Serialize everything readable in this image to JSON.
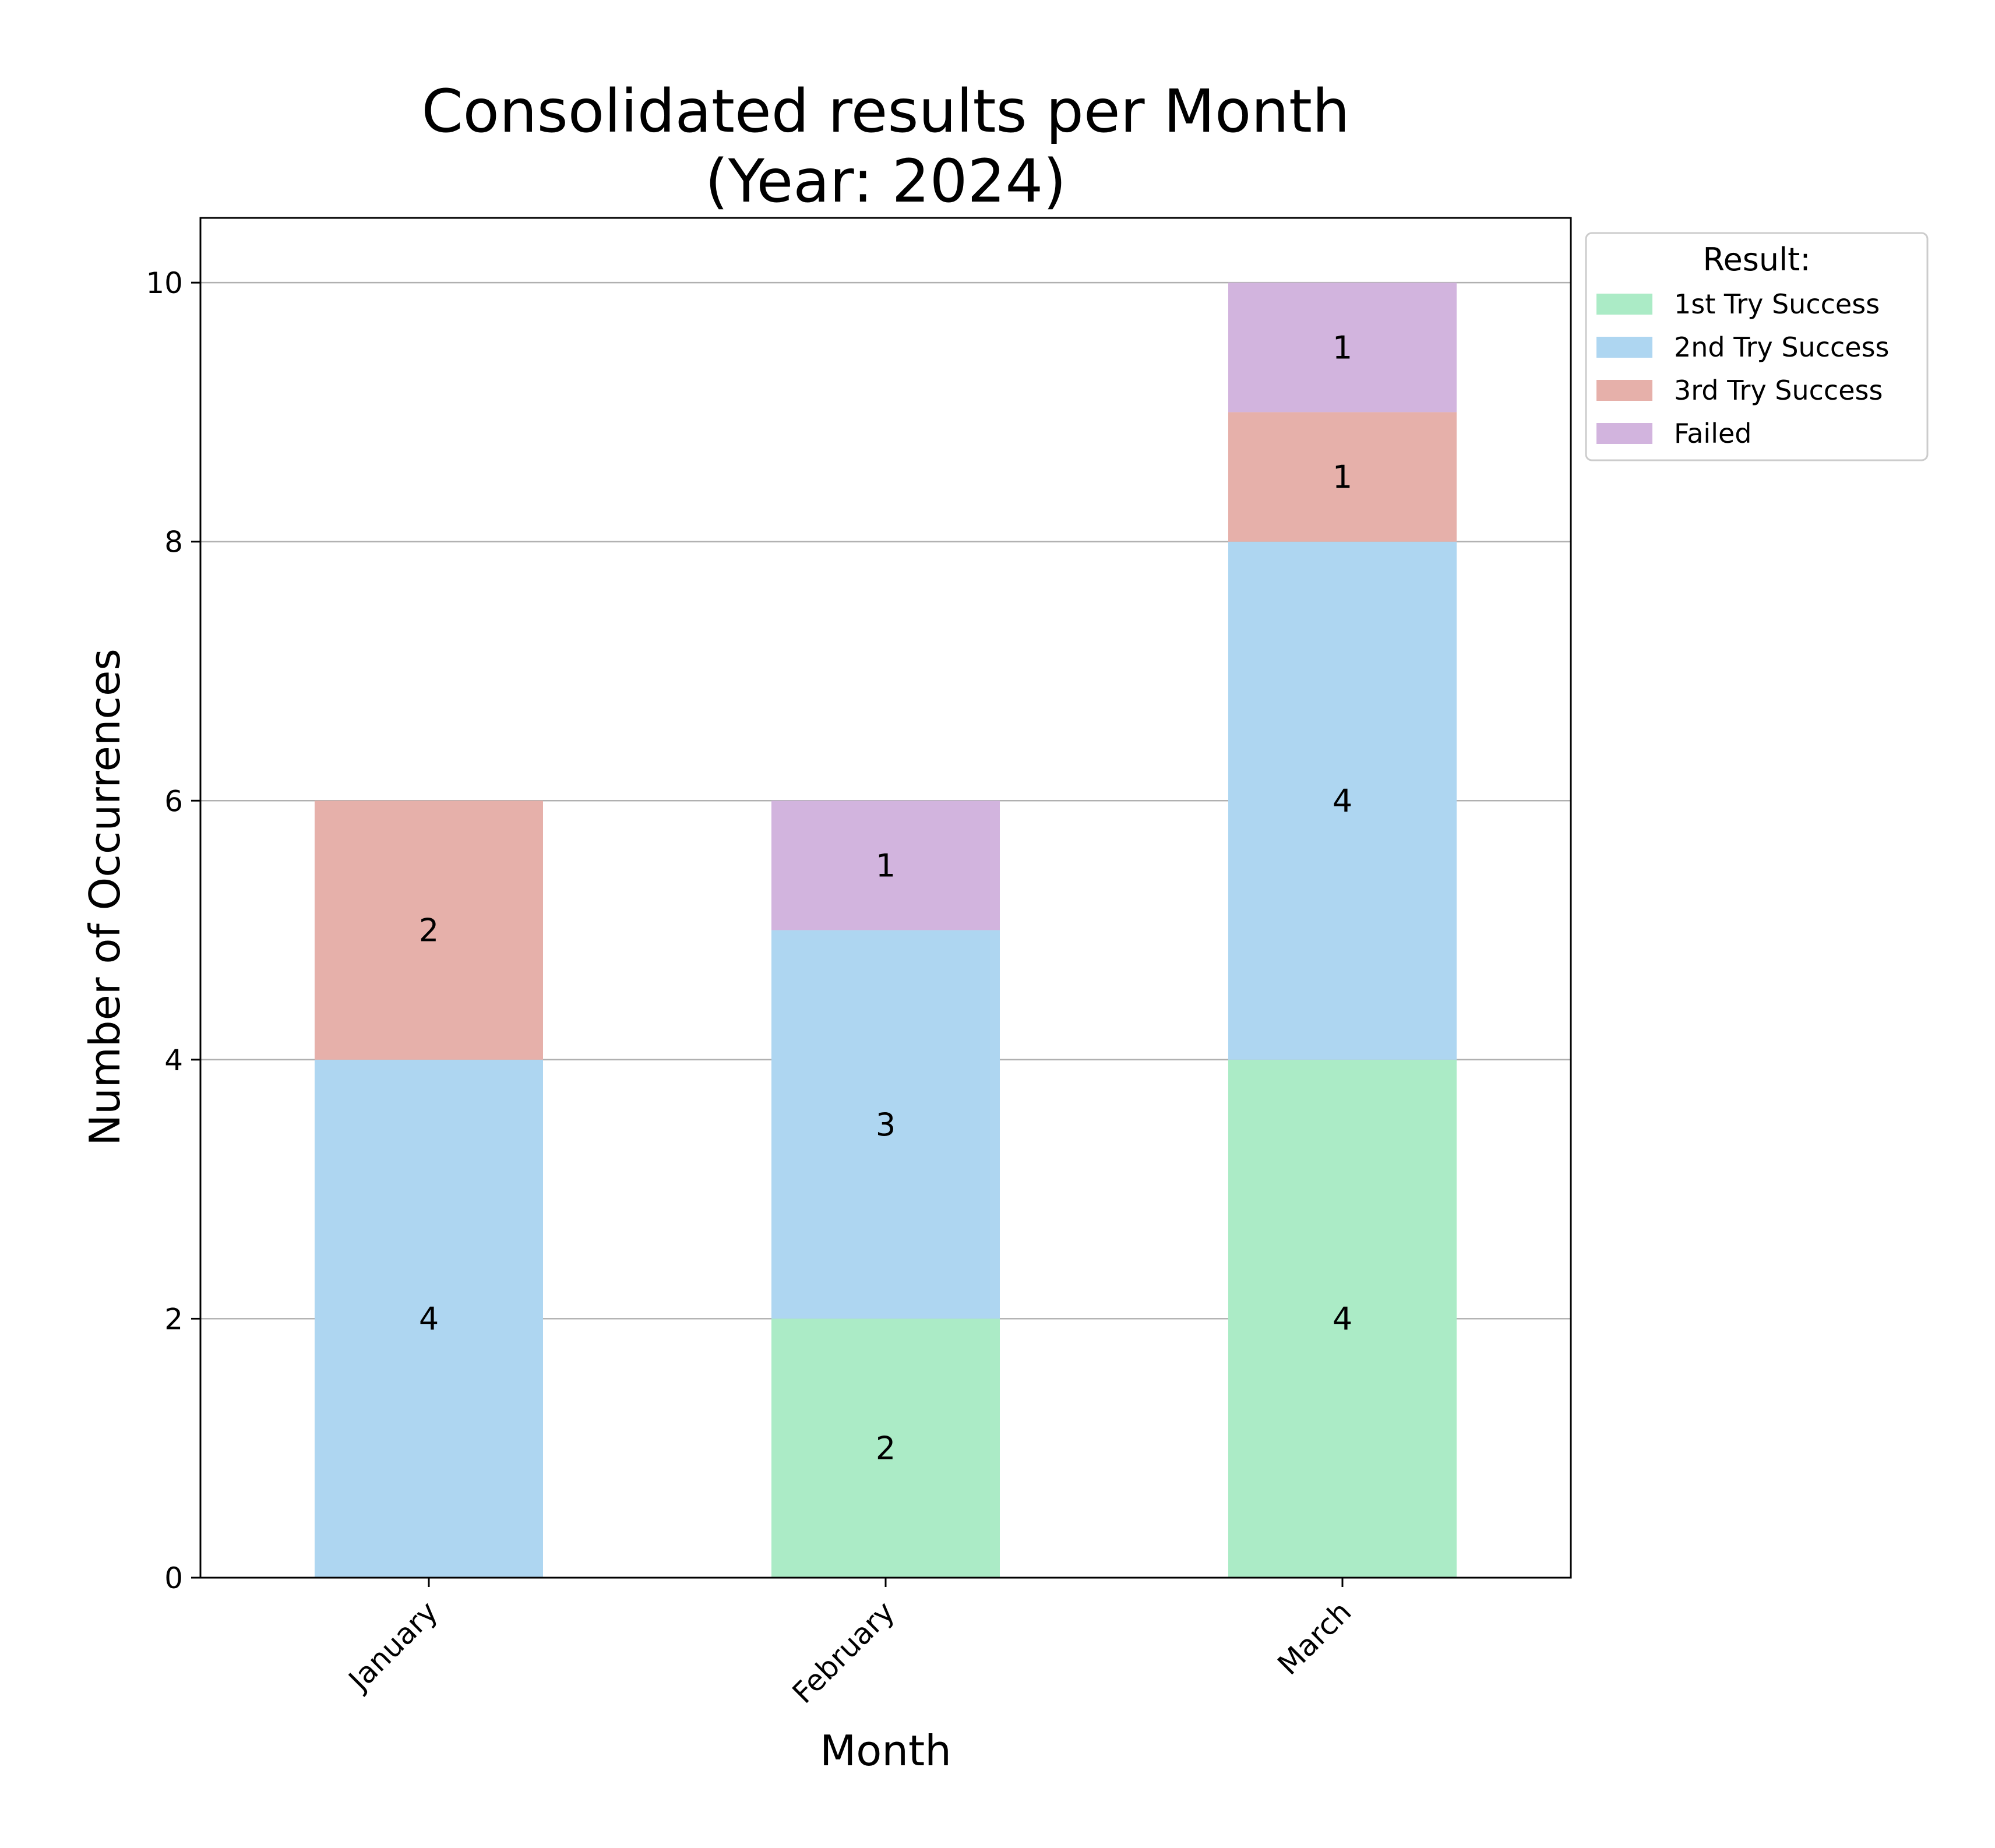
{
  "chart_data": {
    "type": "bar",
    "stacked": true,
    "title": [
      "Consolidated results per Month",
      "(Year: 2024)"
    ],
    "xlabel": "Month",
    "ylabel": "Number of Occurrences",
    "categories": [
      "January",
      "February",
      "March"
    ],
    "ylim": [
      0,
      10.5
    ],
    "yticks": [
      0,
      2,
      4,
      6,
      8,
      10
    ],
    "grid": "horizontal",
    "legend": {
      "title": "Result:",
      "placement": "outside-top-right"
    },
    "series": [
      {
        "name": "1st Try Success",
        "color": "#abebc6",
        "values": [
          0,
          2,
          4
        ]
      },
      {
        "name": "2nd Try Success",
        "color": "#aed6f1",
        "values": [
          4,
          3,
          4
        ]
      },
      {
        "name": "3rd Try Success",
        "color": "#e6b0aa",
        "values": [
          2,
          0,
          1
        ]
      },
      {
        "name": "Failed",
        "color": "#d2b4de",
        "values": [
          0,
          1,
          1
        ]
      }
    ]
  }
}
